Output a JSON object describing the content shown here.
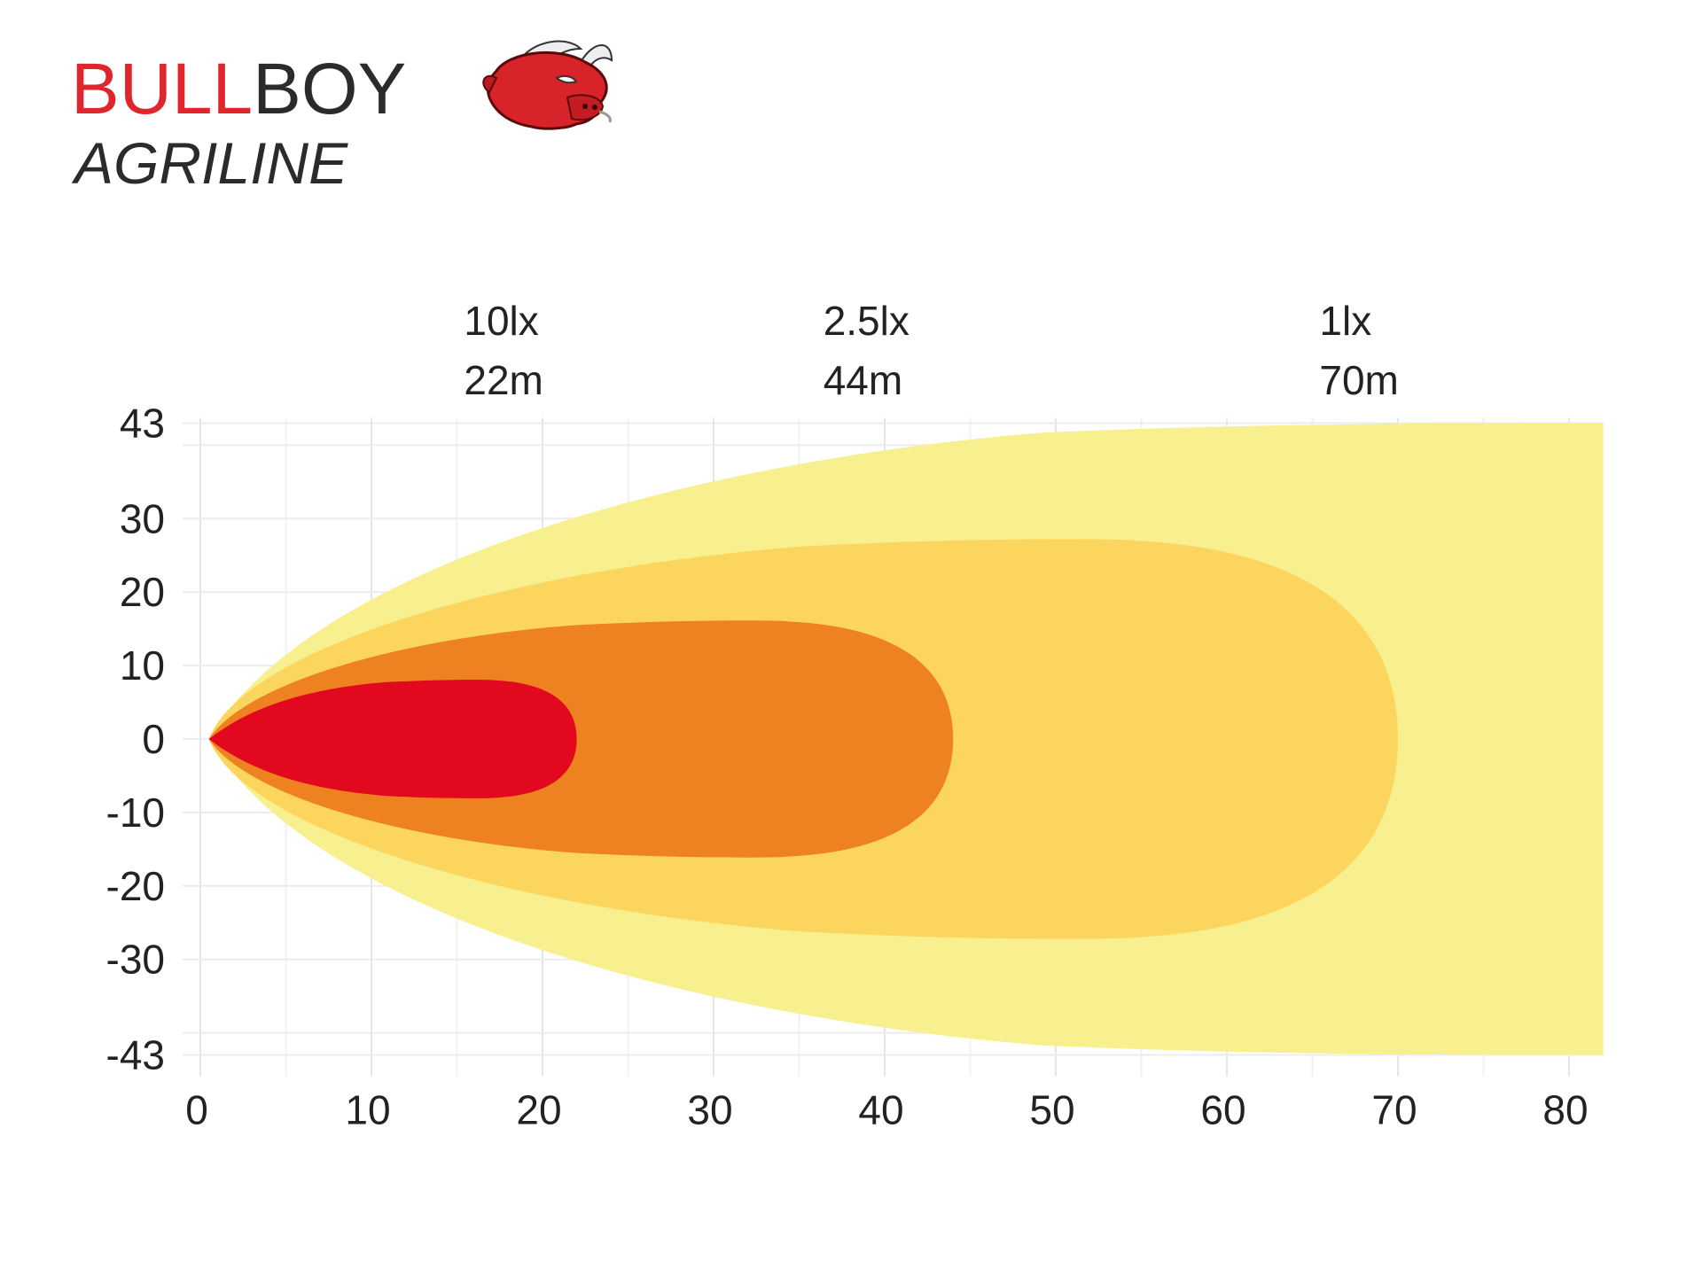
{
  "brand": {
    "name_part1": "BULL",
    "name_part2": "BOY",
    "subline": "AGRILINE",
    "colors": {
      "red": "#e0262d",
      "dark": "#2b2b2b"
    },
    "mascot": "bull-head-icon"
  },
  "chart_data": {
    "type": "area",
    "title": "",
    "xlabel": "",
    "ylabel": "",
    "xlim": [
      0,
      82
    ],
    "ylim": [
      -43,
      43
    ],
    "x_ticks": [
      0,
      10,
      20,
      30,
      40,
      50,
      60,
      70,
      80
    ],
    "y_ticks": [
      43,
      30,
      20,
      10,
      0,
      -10,
      -20,
      -30,
      -43
    ],
    "grid": true,
    "zones": [
      {
        "illuminance": "1lx",
        "distance": "70m",
        "reach_m": 82,
        "half_width_at_end": 43,
        "color": "#f8ef8e"
      },
      {
        "illuminance": "1lx",
        "distance": "70m",
        "reach_m": 70,
        "half_width_max": 27,
        "color": "#fcd55e"
      },
      {
        "illuminance": "2.5lx",
        "distance": "44m",
        "reach_m": 44,
        "half_width_max": 16,
        "color": "#ef8220"
      },
      {
        "illuminance": "10lx",
        "distance": "22m",
        "reach_m": 22,
        "half_width_max": 8,
        "color": "#e2081e"
      }
    ],
    "labels": [
      {
        "illuminance": "10lx",
        "distance": "22m",
        "x": 18
      },
      {
        "illuminance": "2.5lx",
        "distance": "44m",
        "x": 39
      },
      {
        "illuminance": "1lx",
        "distance": "70m",
        "x": 68
      }
    ]
  }
}
